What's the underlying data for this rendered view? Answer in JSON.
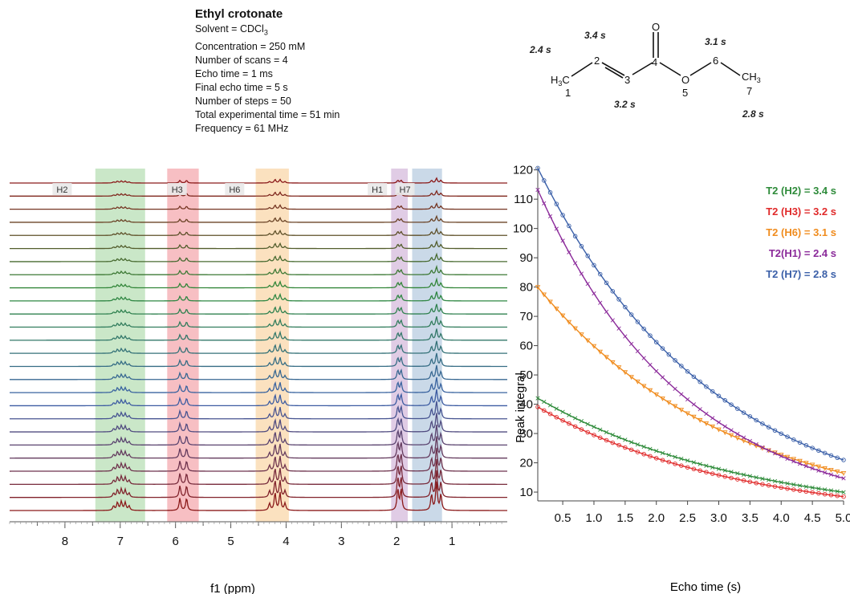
{
  "info": {
    "title": "Ethyl crotonate",
    "lines": [
      "Solvent = CDCl",
      "Concentration = 250 mM",
      "Number of scans = 4",
      "Echo time = 1 ms",
      "Final echo time = 5 s",
      "Number of steps = 50",
      "Total experimental time = 51 min",
      "Frequency = 61 MHz"
    ],
    "solvent_subscript": "3"
  },
  "molecule": {
    "atoms": {
      "c1": "H",
      "c1sub": "3",
      "c1c": "C",
      "n1": "1",
      "n2": "2",
      "n3": "3",
      "o_top": "O",
      "n4": "4",
      "o5": "O",
      "n5": "5",
      "n6": "6",
      "c7": "CH",
      "c7sub": "3",
      "n7": "7"
    },
    "t2_labels": [
      "2.4 s",
      "3.4 s",
      "3.2 s",
      "3.1 s",
      "2.8 s"
    ]
  },
  "chart_data": [
    {
      "type": "line",
      "title": "",
      "xlabel": "f1 (ppm)",
      "ylabel": "",
      "xlim": [
        9.0,
        0.0
      ],
      "x_ticks": [
        8,
        7,
        6,
        5,
        4,
        3,
        2,
        1
      ],
      "stacked_spectra_count": 26,
      "regions": [
        {
          "name": "H2",
          "ppm_start": 7.45,
          "ppm_end": 6.55,
          "color": "#9fd39a"
        },
        {
          "name": "H3",
          "ppm_start": 6.15,
          "ppm_end": 5.58,
          "color": "#f08a92"
        },
        {
          "name": "H6",
          "ppm_start": 4.55,
          "ppm_end": 3.95,
          "color": "#f7c98a"
        },
        {
          "name": "H1",
          "ppm_start": 2.1,
          "ppm_end": 1.8,
          "color": "#c7a3d0"
        },
        {
          "name": "H7",
          "ppm_start": 1.72,
          "ppm_end": 1.18,
          "color": "#9fbad6"
        }
      ],
      "colors_bottom_to_top": [
        "#8b1a1a",
        "#2e8b3a",
        "#3a5fa8",
        "#8b1a1a"
      ]
    },
    {
      "type": "scatter",
      "title": "",
      "xlabel": "Echo time (s)",
      "ylabel": "Peak integral",
      "xlim": [
        0.1,
        5.0
      ],
      "ylim": [
        7,
        121
      ],
      "x_ticks": [
        0.5,
        1.0,
        1.5,
        2.0,
        2.5,
        3.0,
        3.5,
        4.0,
        4.5,
        5.0
      ],
      "y_ticks": [
        10,
        20,
        30,
        40,
        50,
        60,
        70,
        80,
        90,
        100,
        110,
        120
      ],
      "series": [
        {
          "name": "T2 (H2) = 3.4 s",
          "color": "#2e8b3a",
          "marker": "x",
          "A": 43.3,
          "T2": 3.4
        },
        {
          "name": "T2 (H3) = 3.2 s",
          "color": "#e02a2a",
          "marker": "o",
          "A": 40.3,
          "T2": 3.2
        },
        {
          "name": "T2 (H6) = 3.1 s",
          "color": "#f08c1e",
          "marker": "v",
          "A": 82.6,
          "T2": 3.1
        },
        {
          "name": "T2(H1) = 2.4 s",
          "color": "#8b2a9a",
          "marker": "x",
          "A": 118.0,
          "T2": 2.4
        },
        {
          "name": "T2 (H7) = 2.8 s",
          "color": "#3a5fa8",
          "marker": "o",
          "A": 125.0,
          "T2": 2.8
        }
      ],
      "legend_position": "top-right"
    }
  ]
}
